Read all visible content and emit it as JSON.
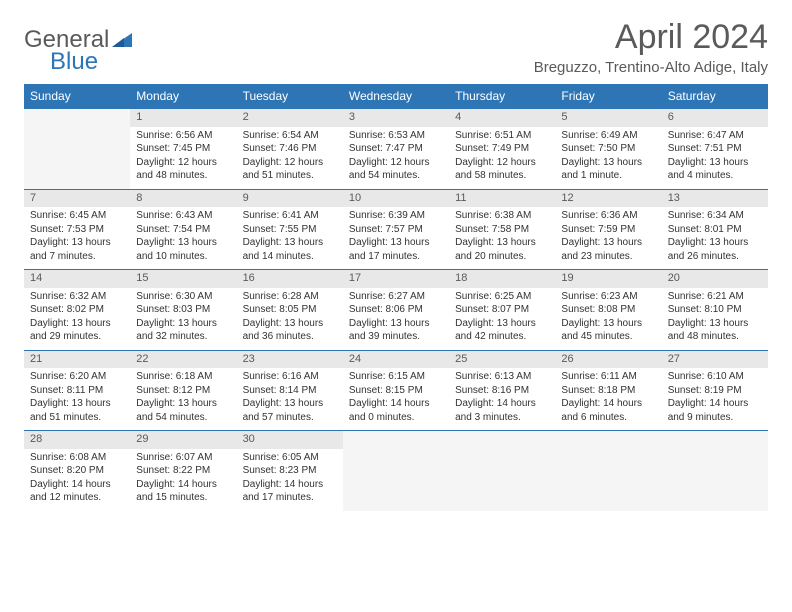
{
  "brand": {
    "word1": "General",
    "word2": "Blue"
  },
  "title": "April 2024",
  "location": "Breguzzo, Trentino-Alto Adige, Italy",
  "colors": {
    "header_bg": "#2e75b6",
    "header_text": "#ffffff",
    "daynum_bg": "#e8e8e8",
    "border_top": "#2e75b6",
    "text": "#333333",
    "muted": "#5a5a5a",
    "empty_bg": "#f5f5f5"
  },
  "font": {
    "family": "Arial",
    "title_size": 34,
    "cell_size": 10,
    "header_size": 12
  },
  "dayHeaders": [
    "Sunday",
    "Monday",
    "Tuesday",
    "Wednesday",
    "Thursday",
    "Friday",
    "Saturday"
  ],
  "weeks": [
    [
      null,
      {
        "n": "1",
        "sr": "Sunrise: 6:56 AM",
        "ss": "Sunset: 7:45 PM",
        "d1": "Daylight: 12 hours",
        "d2": "and 48 minutes."
      },
      {
        "n": "2",
        "sr": "Sunrise: 6:54 AM",
        "ss": "Sunset: 7:46 PM",
        "d1": "Daylight: 12 hours",
        "d2": "and 51 minutes."
      },
      {
        "n": "3",
        "sr": "Sunrise: 6:53 AM",
        "ss": "Sunset: 7:47 PM",
        "d1": "Daylight: 12 hours",
        "d2": "and 54 minutes."
      },
      {
        "n": "4",
        "sr": "Sunrise: 6:51 AM",
        "ss": "Sunset: 7:49 PM",
        "d1": "Daylight: 12 hours",
        "d2": "and 58 minutes."
      },
      {
        "n": "5",
        "sr": "Sunrise: 6:49 AM",
        "ss": "Sunset: 7:50 PM",
        "d1": "Daylight: 13 hours",
        "d2": "and 1 minute."
      },
      {
        "n": "6",
        "sr": "Sunrise: 6:47 AM",
        "ss": "Sunset: 7:51 PM",
        "d1": "Daylight: 13 hours",
        "d2": "and 4 minutes."
      }
    ],
    [
      {
        "n": "7",
        "sr": "Sunrise: 6:45 AM",
        "ss": "Sunset: 7:53 PM",
        "d1": "Daylight: 13 hours",
        "d2": "and 7 minutes."
      },
      {
        "n": "8",
        "sr": "Sunrise: 6:43 AM",
        "ss": "Sunset: 7:54 PM",
        "d1": "Daylight: 13 hours",
        "d2": "and 10 minutes."
      },
      {
        "n": "9",
        "sr": "Sunrise: 6:41 AM",
        "ss": "Sunset: 7:55 PM",
        "d1": "Daylight: 13 hours",
        "d2": "and 14 minutes."
      },
      {
        "n": "10",
        "sr": "Sunrise: 6:39 AM",
        "ss": "Sunset: 7:57 PM",
        "d1": "Daylight: 13 hours",
        "d2": "and 17 minutes."
      },
      {
        "n": "11",
        "sr": "Sunrise: 6:38 AM",
        "ss": "Sunset: 7:58 PM",
        "d1": "Daylight: 13 hours",
        "d2": "and 20 minutes."
      },
      {
        "n": "12",
        "sr": "Sunrise: 6:36 AM",
        "ss": "Sunset: 7:59 PM",
        "d1": "Daylight: 13 hours",
        "d2": "and 23 minutes."
      },
      {
        "n": "13",
        "sr": "Sunrise: 6:34 AM",
        "ss": "Sunset: 8:01 PM",
        "d1": "Daylight: 13 hours",
        "d2": "and 26 minutes."
      }
    ],
    [
      {
        "n": "14",
        "sr": "Sunrise: 6:32 AM",
        "ss": "Sunset: 8:02 PM",
        "d1": "Daylight: 13 hours",
        "d2": "and 29 minutes."
      },
      {
        "n": "15",
        "sr": "Sunrise: 6:30 AM",
        "ss": "Sunset: 8:03 PM",
        "d1": "Daylight: 13 hours",
        "d2": "and 32 minutes."
      },
      {
        "n": "16",
        "sr": "Sunrise: 6:28 AM",
        "ss": "Sunset: 8:05 PM",
        "d1": "Daylight: 13 hours",
        "d2": "and 36 minutes."
      },
      {
        "n": "17",
        "sr": "Sunrise: 6:27 AM",
        "ss": "Sunset: 8:06 PM",
        "d1": "Daylight: 13 hours",
        "d2": "and 39 minutes."
      },
      {
        "n": "18",
        "sr": "Sunrise: 6:25 AM",
        "ss": "Sunset: 8:07 PM",
        "d1": "Daylight: 13 hours",
        "d2": "and 42 minutes."
      },
      {
        "n": "19",
        "sr": "Sunrise: 6:23 AM",
        "ss": "Sunset: 8:08 PM",
        "d1": "Daylight: 13 hours",
        "d2": "and 45 minutes."
      },
      {
        "n": "20",
        "sr": "Sunrise: 6:21 AM",
        "ss": "Sunset: 8:10 PM",
        "d1": "Daylight: 13 hours",
        "d2": "and 48 minutes."
      }
    ],
    [
      {
        "n": "21",
        "sr": "Sunrise: 6:20 AM",
        "ss": "Sunset: 8:11 PM",
        "d1": "Daylight: 13 hours",
        "d2": "and 51 minutes."
      },
      {
        "n": "22",
        "sr": "Sunrise: 6:18 AM",
        "ss": "Sunset: 8:12 PM",
        "d1": "Daylight: 13 hours",
        "d2": "and 54 minutes."
      },
      {
        "n": "23",
        "sr": "Sunrise: 6:16 AM",
        "ss": "Sunset: 8:14 PM",
        "d1": "Daylight: 13 hours",
        "d2": "and 57 minutes."
      },
      {
        "n": "24",
        "sr": "Sunrise: 6:15 AM",
        "ss": "Sunset: 8:15 PM",
        "d1": "Daylight: 14 hours",
        "d2": "and 0 minutes."
      },
      {
        "n": "25",
        "sr": "Sunrise: 6:13 AM",
        "ss": "Sunset: 8:16 PM",
        "d1": "Daylight: 14 hours",
        "d2": "and 3 minutes."
      },
      {
        "n": "26",
        "sr": "Sunrise: 6:11 AM",
        "ss": "Sunset: 8:18 PM",
        "d1": "Daylight: 14 hours",
        "d2": "and 6 minutes."
      },
      {
        "n": "27",
        "sr": "Sunrise: 6:10 AM",
        "ss": "Sunset: 8:19 PM",
        "d1": "Daylight: 14 hours",
        "d2": "and 9 minutes."
      }
    ],
    [
      {
        "n": "28",
        "sr": "Sunrise: 6:08 AM",
        "ss": "Sunset: 8:20 PM",
        "d1": "Daylight: 14 hours",
        "d2": "and 12 minutes."
      },
      {
        "n": "29",
        "sr": "Sunrise: 6:07 AM",
        "ss": "Sunset: 8:22 PM",
        "d1": "Daylight: 14 hours",
        "d2": "and 15 minutes."
      },
      {
        "n": "30",
        "sr": "Sunrise: 6:05 AM",
        "ss": "Sunset: 8:23 PM",
        "d1": "Daylight: 14 hours",
        "d2": "and 17 minutes."
      },
      null,
      null,
      null,
      null
    ]
  ]
}
